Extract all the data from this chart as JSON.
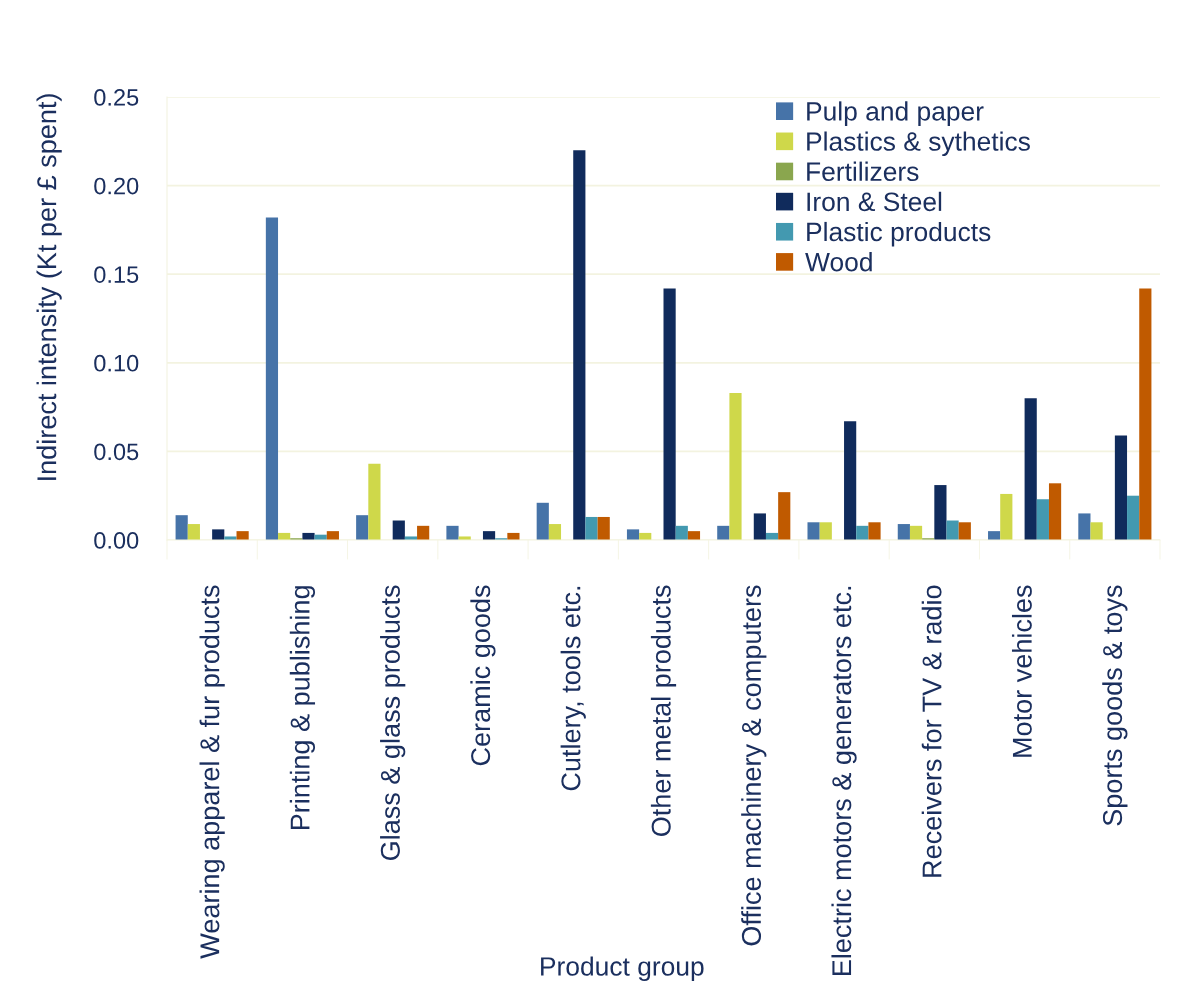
{
  "chart_data": {
    "type": "bar",
    "xlabel": "Product group",
    "ylabel": "Indirect intensity (Kt per £ spent)",
    "categories": [
      "Wearing apparel & fur products",
      "Printing & publishing",
      "Glass & glass products",
      "Ceramic goods",
      "Cutlery, tools etc.",
      "Other metal products",
      "Office machinery & computers",
      "Electric motors & generators etc.",
      "Receivers for TV & radio",
      "Motor vehicles",
      "Sports goods & toys"
    ],
    "series": [
      {
        "name": "Pulp and paper",
        "color": "#4673a8",
        "values": [
          0.014,
          0.182,
          0.014,
          0.008,
          0.021,
          0.006,
          0.008,
          0.01,
          0.009,
          0.005,
          0.015
        ]
      },
      {
        "name": "Plastics & sythetics",
        "color": "#cfd84a",
        "values": [
          0.009,
          0.004,
          0.043,
          0.002,
          0.009,
          0.004,
          0.083,
          0.01,
          0.008,
          0.026,
          0.01
        ]
      },
      {
        "name": "Fertilizers",
        "color": "#8aa64e",
        "values": [
          null,
          0.001,
          null,
          null,
          null,
          null,
          null,
          null,
          0.001,
          null,
          null
        ]
      },
      {
        "name": "Iron & Steel",
        "color": "#102b5c",
        "values": [
          0.006,
          0.004,
          0.011,
          0.005,
          0.22,
          0.142,
          0.015,
          0.067,
          0.031,
          0.08,
          0.059
        ]
      },
      {
        "name": "Plastic products",
        "color": "#4399b0",
        "values": [
          0.002,
          0.003,
          0.002,
          0.001,
          0.013,
          0.008,
          0.004,
          0.008,
          0.011,
          0.023,
          0.025
        ]
      },
      {
        "name": "Wood",
        "color": "#c05a00",
        "values": [
          0.005,
          0.005,
          0.008,
          0.004,
          0.013,
          0.005,
          0.027,
          0.01,
          0.01,
          0.032,
          0.142
        ]
      }
    ],
    "ylim": [
      0,
      0.25
    ],
    "yticks": [
      {
        "value": 0,
        "label": "0.00"
      },
      {
        "value": 0.05,
        "label": "0.05"
      },
      {
        "value": 0.1,
        "label": "0.10"
      },
      {
        "value": 0.15,
        "label": "0.15"
      },
      {
        "value": 0.2,
        "label": "0.20"
      },
      {
        "value": 0.25,
        "label": "0.25"
      }
    ],
    "grid": "y",
    "legend": "top right"
  }
}
